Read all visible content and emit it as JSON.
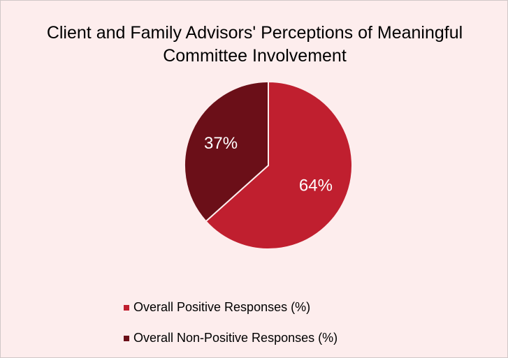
{
  "chart_data": {
    "type": "pie",
    "title": "Client and Family Advisors' Perceptions of Meaningful Committee Involvement",
    "categories": [
      "Overall Positive Responses (%)",
      "Overall Non-Positive Responses (%)"
    ],
    "values": [
      64,
      37
    ],
    "value_labels": [
      "64%",
      "37%"
    ],
    "colors": [
      "#c01f2f",
      "#6b0f18"
    ],
    "legend": "bottom"
  }
}
